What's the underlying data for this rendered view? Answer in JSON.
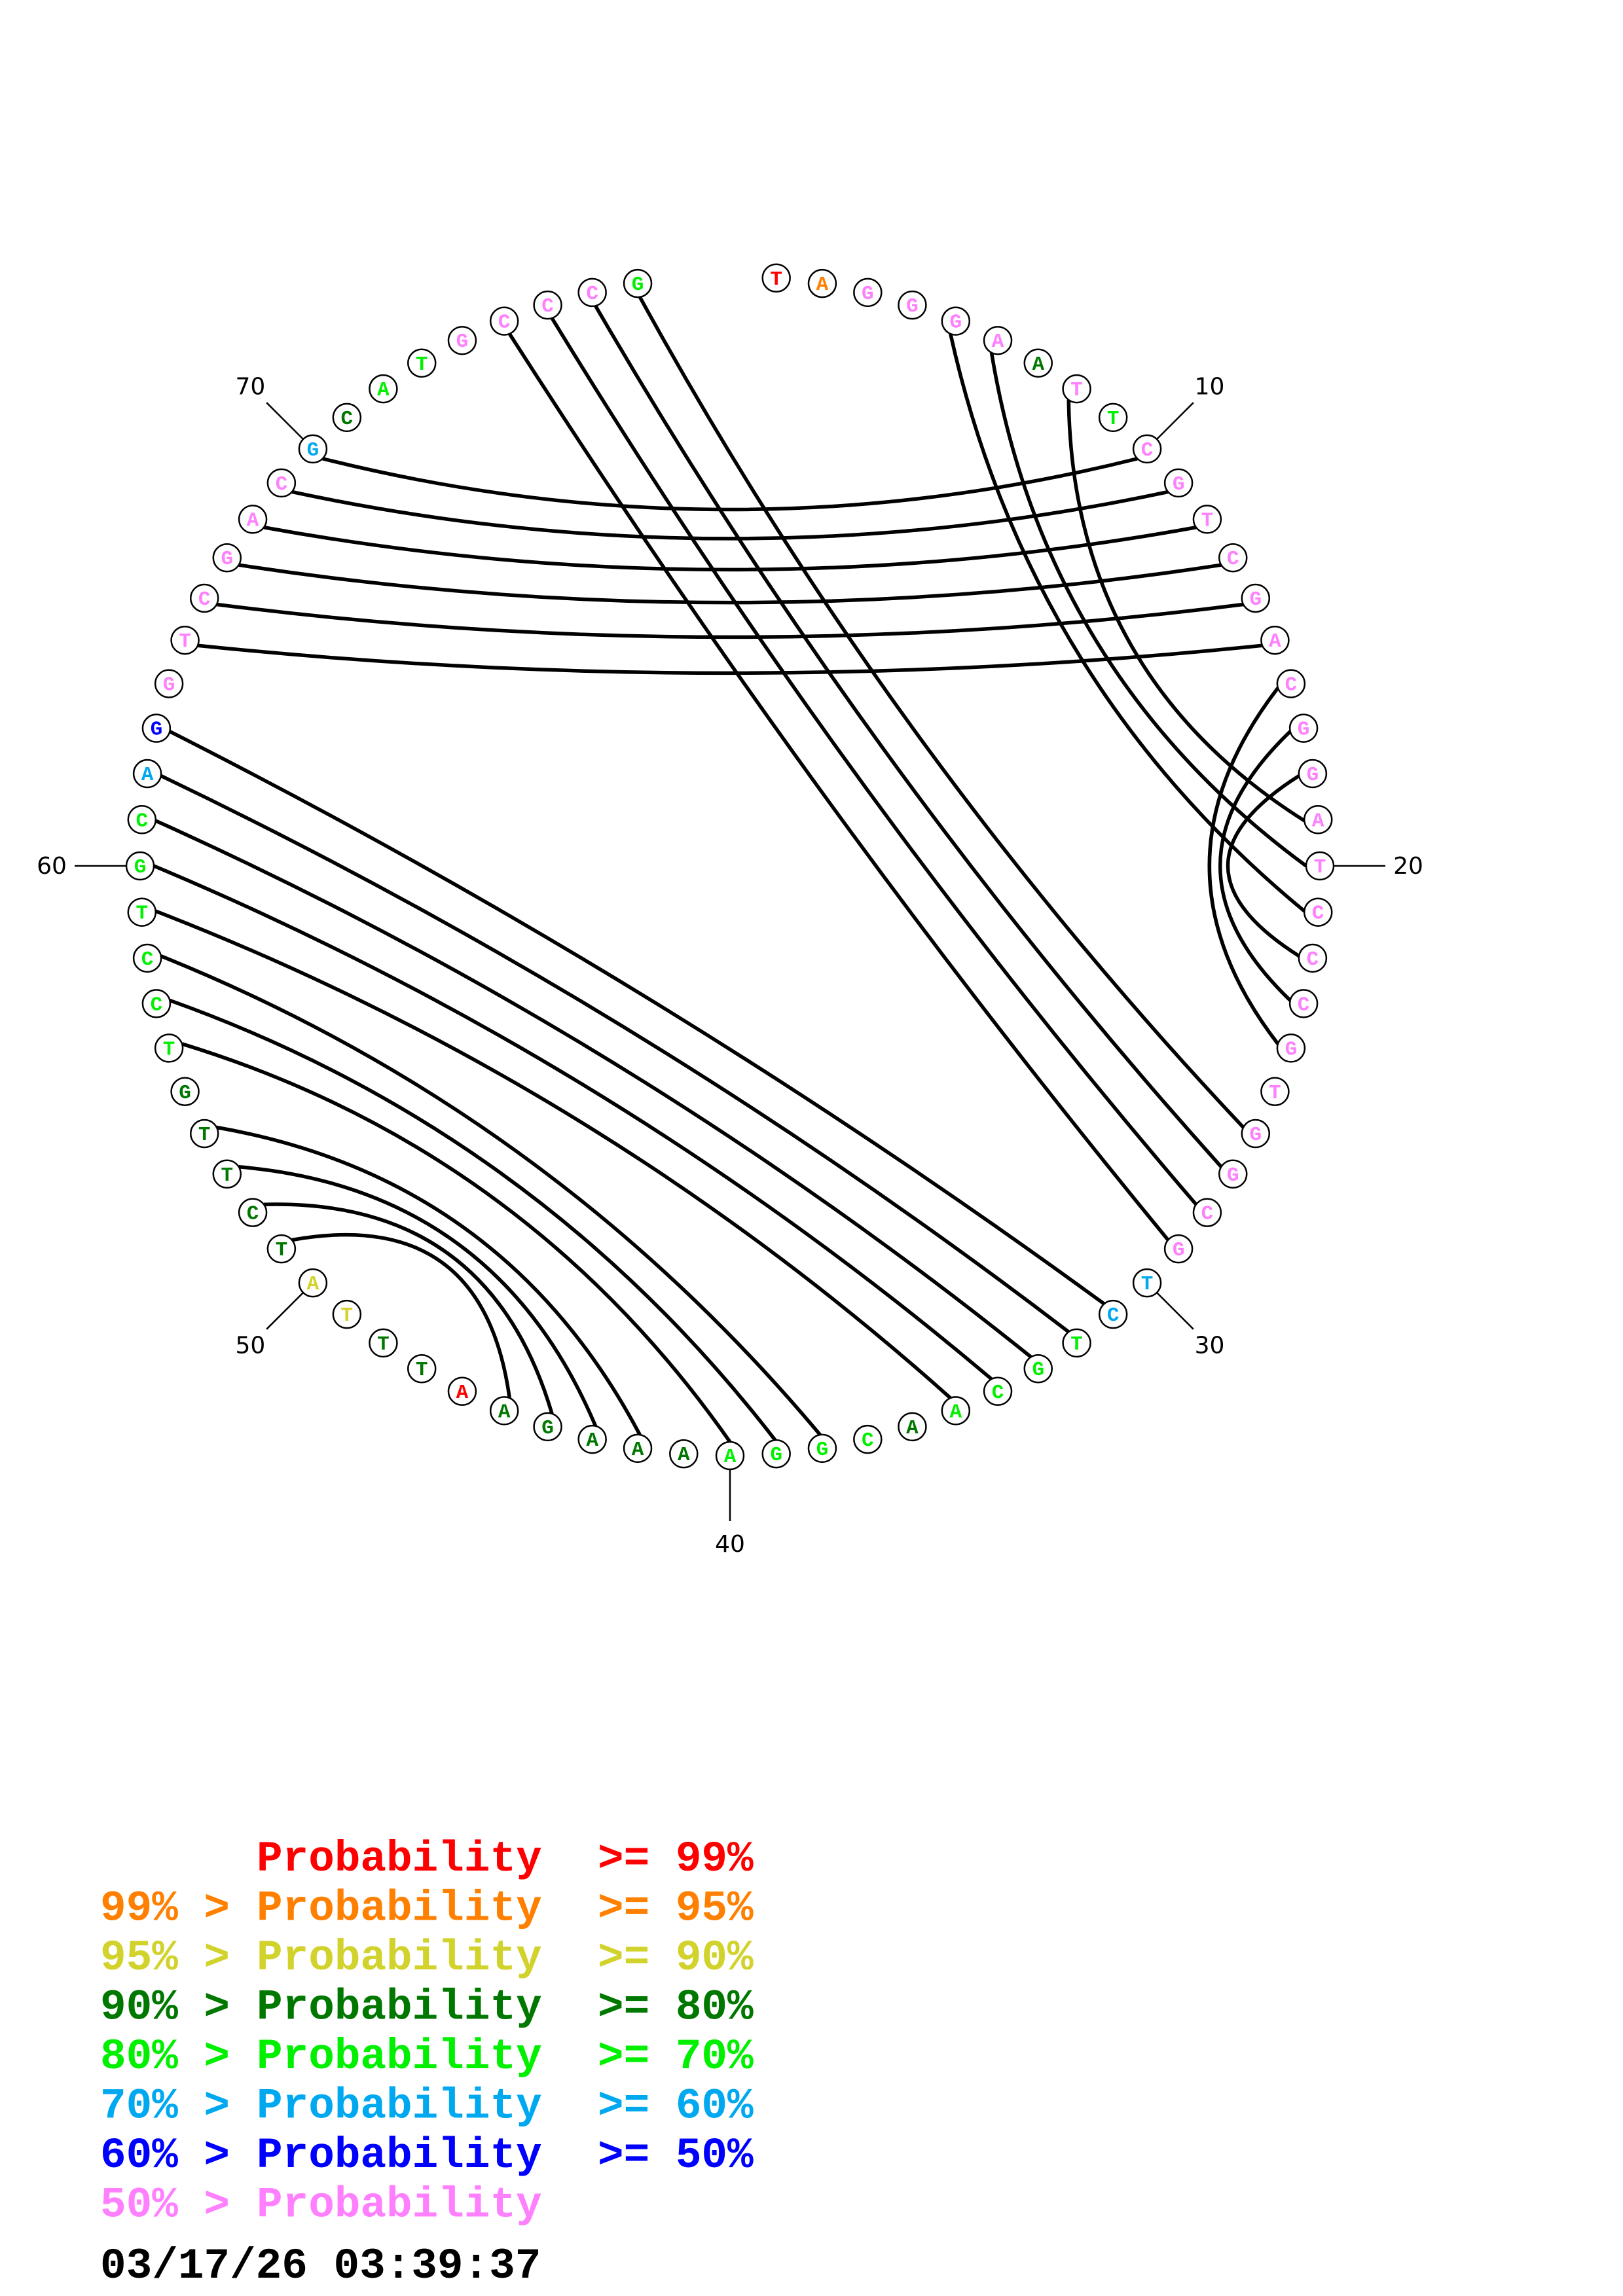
{
  "colors": {
    "r": "#FF0000",
    "o": "#FF8000",
    "y": "#D2D22C",
    "d": "#007800",
    "g": "#00F000",
    "c": "#00A8F0",
    "b": "#0000FF",
    "p": "#FF80FF"
  },
  "sequence": "TAGGGAATTCGTCGACGGATCCCGTGGCGTCTGCAACGGAAAAGAATTTATCTTGTCCTGCAGGTCGACGCATGCCCG",
  "probability_bins": "roppppdpgppppppppppppppppppppccggggdggggdddddrddyydddddggggggcbppppppcdggppppg",
  "pairs": [
    [
      5,
      21
    ],
    [
      6,
      20
    ],
    [
      8,
      19
    ],
    [
      10,
      70
    ],
    [
      11,
      69
    ],
    [
      12,
      68
    ],
    [
      13,
      67
    ],
    [
      14,
      66
    ],
    [
      15,
      65
    ],
    [
      16,
      24
    ],
    [
      17,
      23
    ],
    [
      18,
      22
    ],
    [
      26,
      78
    ],
    [
      27,
      77
    ],
    [
      28,
      76
    ],
    [
      29,
      75
    ],
    [
      31,
      63
    ],
    [
      32,
      62
    ],
    [
      33,
      61
    ],
    [
      34,
      60
    ],
    [
      35,
      59
    ],
    [
      38,
      58
    ],
    [
      39,
      57
    ],
    [
      40,
      56
    ],
    [
      42,
      54
    ],
    [
      43,
      53
    ],
    [
      44,
      52
    ],
    [
      45,
      51
    ]
  ],
  "position_labels": [
    "10",
    "20",
    "30",
    "40",
    "50",
    "60",
    "70"
  ],
  "legend": [
    {
      "prefix": "",
      "label": "Probability",
      "suffix": ">= 99%",
      "bin": "r"
    },
    {
      "prefix": "99% >",
      "label": "Probability",
      "suffix": ">= 95%",
      "bin": "o"
    },
    {
      "prefix": "95% >",
      "label": "Probability",
      "suffix": ">= 90%",
      "bin": "y"
    },
    {
      "prefix": "90% >",
      "label": "Probability",
      "suffix": ">= 80%",
      "bin": "d"
    },
    {
      "prefix": "80% >",
      "label": "Probability",
      "suffix": ">= 70%",
      "bin": "g"
    },
    {
      "prefix": "70% >",
      "label": "Probability",
      "suffix": ">= 60%",
      "bin": "c"
    },
    {
      "prefix": "60% >",
      "label": "Probability",
      "suffix": ">= 50%",
      "bin": "b"
    },
    {
      "prefix": "50% >",
      "label": "Probability",
      "suffix": "",
      "bin": "p"
    }
  ],
  "timestamp": "03/17/26 03:39:37"
}
